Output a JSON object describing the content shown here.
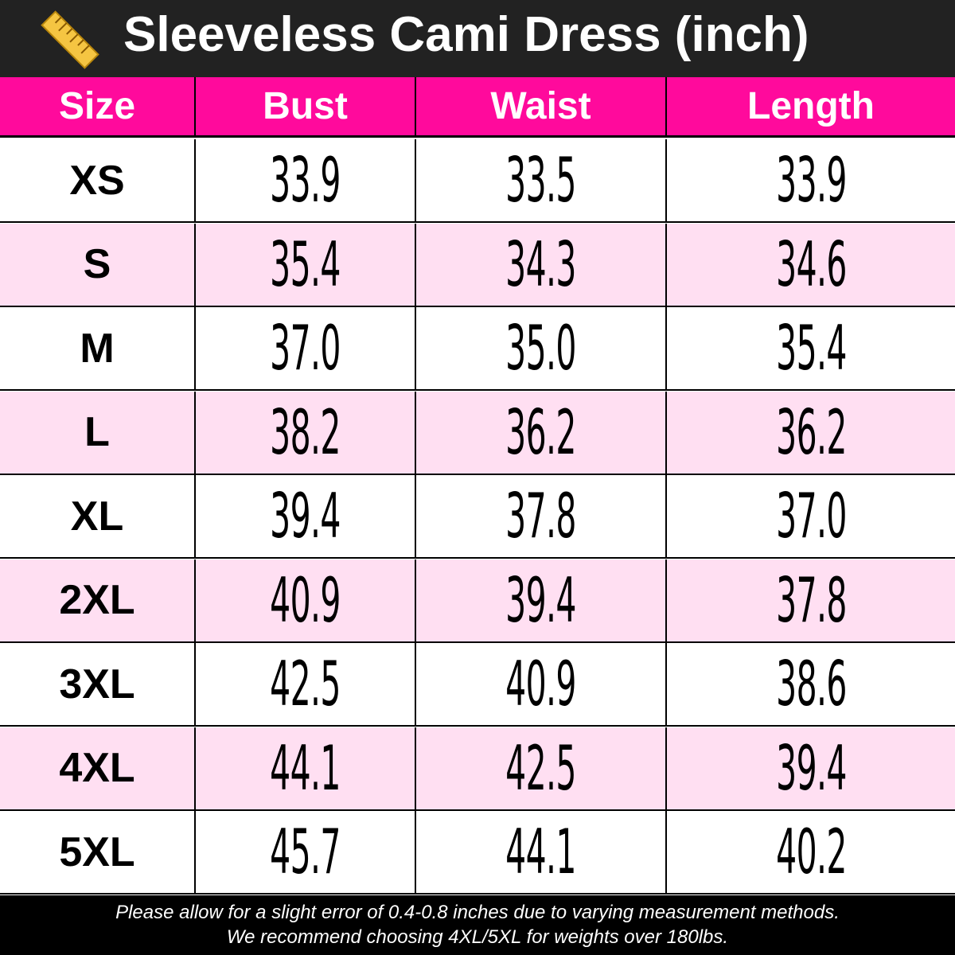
{
  "header": {
    "title": "Sleeveless Cami Dress (inch)"
  },
  "table": {
    "columns": [
      "Size",
      "Bust",
      "Waist",
      "Length"
    ],
    "rows": [
      [
        "XS",
        "33.9",
        "33.5",
        "33.9"
      ],
      [
        "S",
        "35.4",
        "34.3",
        "34.6"
      ],
      [
        "M",
        "37.0",
        "35.0",
        "35.4"
      ],
      [
        "L",
        "38.2",
        "36.2",
        "36.2"
      ],
      [
        "XL",
        "39.4",
        "37.8",
        "37.0"
      ],
      [
        "2XL",
        "40.9",
        "39.4",
        "37.8"
      ],
      [
        "3XL",
        "42.5",
        "40.9",
        "38.6"
      ],
      [
        "4XL",
        "44.1",
        "42.5",
        "39.4"
      ],
      [
        "5XL",
        "45.7",
        "44.1",
        "40.2"
      ]
    ]
  },
  "footer": {
    "lines": [
      "Please allow for a slight error of 0.4-0.8 inches due to varying measurement methods.",
      "We recommend choosing 4XL/5XL for weights over 180lbs."
    ]
  }
}
